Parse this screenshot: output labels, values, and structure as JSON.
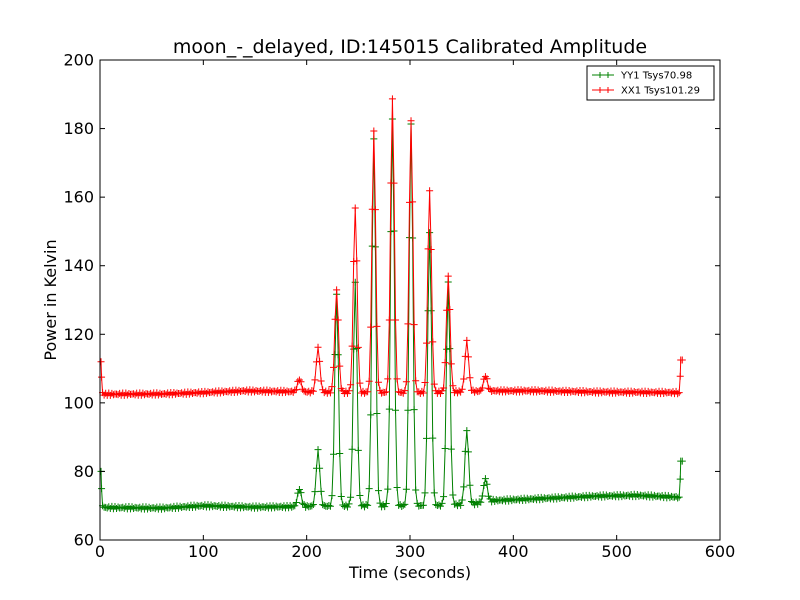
{
  "chart_data": {
    "type": "line",
    "title": "moon_-_delayed, ID:145015 Calibrated Amplitude",
    "xlabel": "Time (seconds)",
    "ylabel": "Power in Kelvin",
    "xlim": [
      0,
      600
    ],
    "ylim": [
      60,
      200
    ],
    "xticks": [
      0,
      100,
      200,
      300,
      400,
      500,
      600
    ],
    "yticks": [
      60,
      80,
      100,
      120,
      140,
      160,
      180,
      200
    ],
    "grid": false,
    "legend_position": "top-right",
    "marker": "+",
    "series": [
      {
        "name": "YY1 Tsys70.98",
        "color": "#008000",
        "start": 1,
        "end": 562,
        "step": 1.5,
        "edge_start": {
          "from": 80,
          "to": 70
        },
        "edge_end": {
          "from": 72.5,
          "to": 83
        },
        "baseline": [
          [
            0,
            69.5
          ],
          [
            60,
            69.3
          ],
          [
            100,
            70.0
          ],
          [
            150,
            69.6
          ],
          [
            200,
            69.8
          ],
          [
            260,
            70.0
          ],
          [
            320,
            70.0
          ],
          [
            360,
            70.5
          ],
          [
            380,
            71.5
          ],
          [
            420,
            72.0
          ],
          [
            480,
            72.8
          ],
          [
            520,
            73.0
          ],
          [
            560,
            72.5
          ]
        ],
        "peaks": [
          [
            193,
            75
          ],
          [
            211,
            86
          ],
          [
            229,
            132
          ],
          [
            247,
            135
          ],
          [
            265,
            177
          ],
          [
            283,
            183
          ],
          [
            301,
            181
          ],
          [
            319,
            150
          ],
          [
            337,
            135
          ],
          [
            355,
            92
          ],
          [
            373,
            78
          ]
        ]
      },
      {
        "name": "XX1 Tsys101.29",
        "color": "#ff0000",
        "start": 1,
        "end": 562,
        "step": 1.5,
        "edge_start": {
          "from": 112,
          "to": 103
        },
        "edge_end": {
          "from": 103,
          "to": 112.5
        },
        "baseline": [
          [
            0,
            102.5
          ],
          [
            60,
            102.6
          ],
          [
            100,
            103.0
          ],
          [
            140,
            103.5
          ],
          [
            200,
            103.2
          ],
          [
            260,
            103.0
          ],
          [
            320,
            103.0
          ],
          [
            380,
            103.5
          ],
          [
            420,
            103.5
          ],
          [
            480,
            103.2
          ],
          [
            560,
            103.0
          ]
        ],
        "peaks": [
          [
            193,
            107
          ],
          [
            211,
            116
          ],
          [
            229,
            133
          ],
          [
            247,
            157
          ],
          [
            265,
            179
          ],
          [
            283,
            189
          ],
          [
            301,
            182
          ],
          [
            319,
            162
          ],
          [
            337,
            137
          ],
          [
            355,
            118
          ],
          [
            373,
            108
          ]
        ]
      }
    ]
  }
}
